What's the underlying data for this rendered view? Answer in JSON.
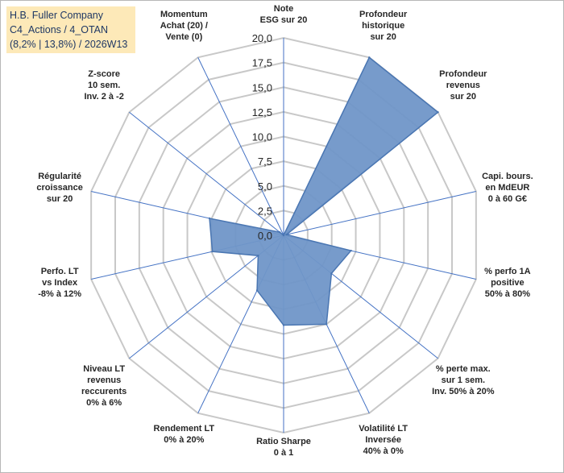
{
  "title": {
    "line1": "H.B. Fuller Company",
    "line2": "C4_Actions / 4_OTAN",
    "line3": "(8,2% | 13,8%) / 2026W13"
  },
  "chart_data": {
    "type": "radar",
    "rmin": 0,
    "rmax": 20,
    "ticks": [
      "0,0",
      "2,5",
      "5,0",
      "7,5",
      "10,0",
      "12,5",
      "15,0",
      "17,5",
      "20,0"
    ],
    "axes": [
      {
        "label": [
          "Note",
          "ESG sur 20"
        ]
      },
      {
        "label": [
          "Profondeur",
          "historique",
          "sur 20"
        ]
      },
      {
        "label": [
          "Profondeur",
          "revenus",
          "sur 20"
        ]
      },
      {
        "label": [
          "Capi. bours.",
          "en MdEUR",
          "0 à 60 G€"
        ]
      },
      {
        "label": [
          "% perfo 1A",
          "positive",
          "50% à 80%"
        ]
      },
      {
        "label": [
          "% perte max.",
          "sur 1 sem.",
          "Inv. 50% à 20%"
        ]
      },
      {
        "label": [
          "Volatilité LT",
          "Inversée",
          "40% à 0%"
        ]
      },
      {
        "label": [
          "Ratio Sharpe",
          "0 à 1"
        ]
      },
      {
        "label": [
          "Rendement LT",
          "0% à 20%"
        ]
      },
      {
        "label": [
          "Niveau LT",
          "revenus",
          "reccurents",
          "0% à 6%"
        ]
      },
      {
        "label": [
          "Perfo. LT",
          "vs Index",
          "-8% à 12%"
        ]
      },
      {
        "label": [
          "Régularité",
          "croissance",
          "sur 20"
        ]
      },
      {
        "label": [
          "Z-score",
          "10 sem.",
          "Inv. 2 à -2"
        ]
      },
      {
        "label": [
          "Momentum",
          "Achat (20) /",
          "Vente (0)"
        ]
      }
    ],
    "series": [
      {
        "name": "H.B. Fuller Company",
        "values": [
          0,
          20,
          20,
          0.3,
          7.0,
          6.2,
          10.0,
          9.1,
          6.2,
          3.3,
          7.4,
          7.7,
          0.5,
          0
        ],
        "color": "#4a76b2",
        "fill": "#7096c8"
      }
    ],
    "grid": true,
    "grid_color": "#c8c8c8",
    "axis_color": "#4472c4"
  }
}
